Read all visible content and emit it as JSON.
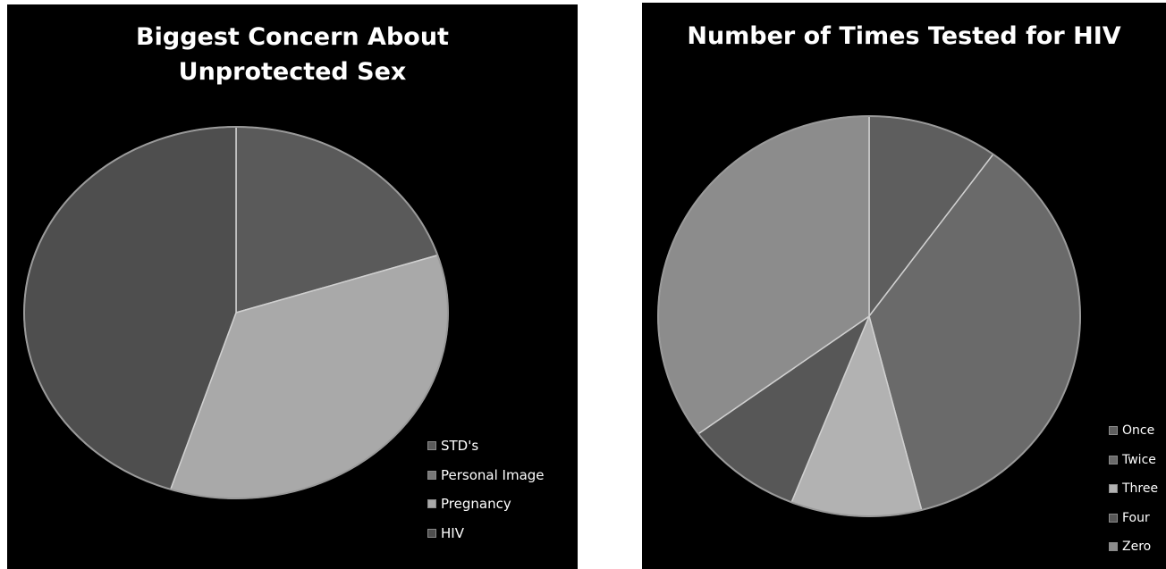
{
  "chart_data": [
    {
      "type": "pie",
      "title_lines": [
        "Biggest Concern About",
        "Unprotected Sex"
      ],
      "categories": [
        "STD's",
        "Personal Image",
        "Pregnancy",
        "HIV"
      ],
      "values": [
        20,
        0,
        35,
        45
      ],
      "colors": [
        "#5a5a5a",
        "#787878",
        "#a9a9a9",
        "#4e4e4e"
      ],
      "legend_position": "bottom-right",
      "start_angle_deg": 0
    },
    {
      "type": "pie",
      "title_lines": [
        "Number of Times Tested for HIV"
      ],
      "categories": [
        "Once",
        "Twice",
        "Three",
        "Four",
        "Zero"
      ],
      "values": [
        10,
        36,
        10,
        9,
        35
      ],
      "colors": [
        "#5e5e5e",
        "#6a6a6a",
        "#b2b2b2",
        "#575757",
        "#8c8c8c"
      ],
      "legend_position": "bottom-right",
      "start_angle_deg": 0
    }
  ]
}
